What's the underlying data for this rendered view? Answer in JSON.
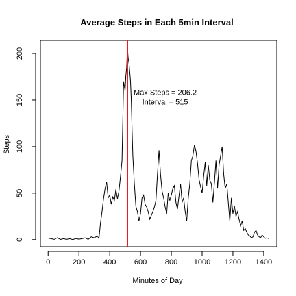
{
  "chart_data": {
    "type": "line",
    "title": "Average Steps in Each 5min Interval",
    "xlabel": "Minutes of Day",
    "ylabel": "Steps",
    "xlim": [
      -50,
      1485
    ],
    "ylim": [
      -7.5,
      214
    ],
    "xticks": [
      0,
      200,
      400,
      600,
      800,
      1000,
      1200,
      1400
    ],
    "yticks": [
      0,
      50,
      100,
      150,
      200
    ],
    "grid": false,
    "colors": {
      "series": "#000000",
      "marker_line": "#e41a1c"
    },
    "series": [
      {
        "x": [
          0,
          40,
          60,
          80,
          100,
          120,
          140,
          160,
          180,
          200,
          220,
          240,
          260,
          280,
          300,
          320,
          330,
          340,
          350,
          360,
          370,
          380,
          390,
          400,
          410,
          420,
          430,
          440,
          450,
          460,
          470,
          480,
          490,
          500,
          505,
          510,
          515,
          520,
          525,
          530,
          535,
          540,
          545,
          550,
          560,
          570,
          580,
          590,
          600,
          610,
          620,
          630,
          640,
          650,
          660,
          670,
          680,
          690,
          700,
          710,
          720,
          730,
          740,
          750,
          760,
          770,
          780,
          790,
          800,
          810,
          820,
          830,
          840,
          850,
          860,
          870,
          880,
          890,
          900,
          910,
          920,
          930,
          940,
          950,
          960,
          970,
          980,
          990,
          1000,
          1010,
          1020,
          1030,
          1040,
          1050,
          1060,
          1070,
          1080,
          1090,
          1100,
          1110,
          1120,
          1130,
          1140,
          1150,
          1160,
          1170,
          1180,
          1190,
          1200,
          1210,
          1220,
          1230,
          1240,
          1250,
          1260,
          1270,
          1280,
          1290,
          1300,
          1310,
          1320,
          1330,
          1340,
          1350,
          1360,
          1370,
          1380,
          1390,
          1400,
          1410,
          1420,
          1435
        ],
        "y": [
          1.7,
          0.3,
          2,
          0.2,
          1,
          0.3,
          1,
          0.1,
          1.2,
          0.5,
          1,
          2,
          0.3,
          3,
          2,
          4,
          1,
          18,
          30,
          44,
          55,
          62,
          45,
          48,
          38,
          46,
          42,
          54,
          44,
          52,
          68,
          85,
          170,
          160,
          176,
          185,
          206,
          195,
          190,
          180,
          170,
          150,
          120,
          90,
          60,
          36,
          30,
          20,
          28,
          45,
          48,
          38,
          35,
          30,
          22,
          26,
          30,
          35,
          42,
          70,
          96,
          70,
          52,
          45,
          35,
          28,
          50,
          42,
          48,
          55,
          58,
          40,
          33,
          47,
          60,
          40,
          45,
          30,
          20,
          45,
          60,
          85,
          90,
          102,
          95,
          82,
          65,
          57,
          50,
          68,
          83,
          58,
          80,
          64,
          60,
          40,
          62,
          85,
          55,
          80,
          90,
          100,
          70,
          55,
          60,
          40,
          20,
          45,
          28,
          36,
          25,
          30,
          22,
          15,
          20,
          10,
          12,
          8,
          5,
          4,
          2,
          3,
          8,
          10,
          5,
          3,
          2,
          5,
          3,
          1.5,
          2,
          1
        ]
      }
    ],
    "vline": {
      "x": 515
    },
    "annotation": {
      "line1": "Max Steps = 206.2",
      "line2": "Interval = 515",
      "x": 760,
      "y": 154
    }
  }
}
